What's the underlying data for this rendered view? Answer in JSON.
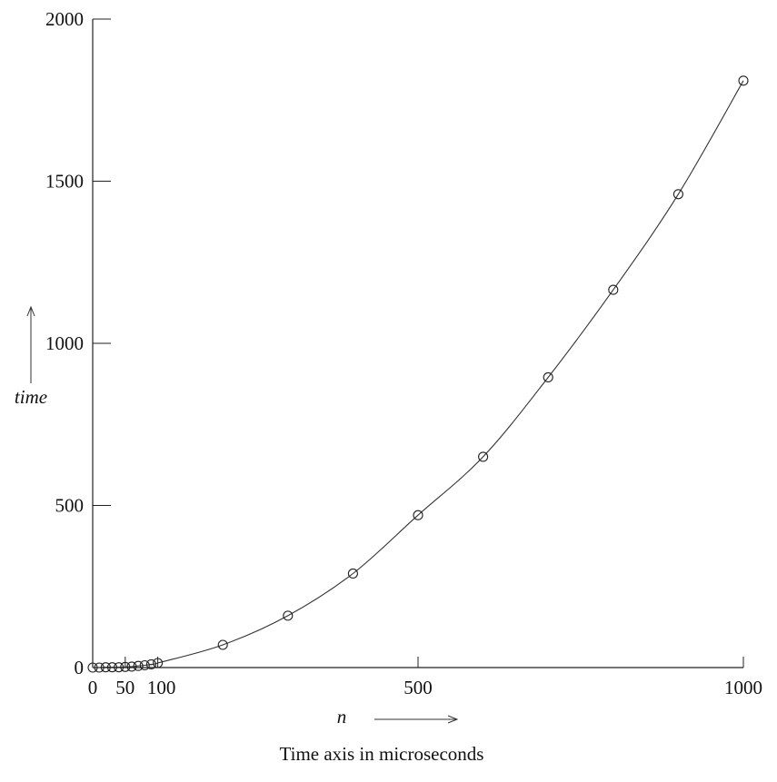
{
  "chart_data": {
    "type": "line",
    "title": "",
    "caption": "Time axis in microseconds",
    "xlabel": "n",
    "ylabel": "time",
    "xlim": [
      0,
      1000
    ],
    "ylim": [
      0,
      2000
    ],
    "x_ticks": [
      {
        "value": 0,
        "label": "0"
      },
      {
        "value": 50,
        "label": "50"
      },
      {
        "value": 100,
        "label": "100"
      },
      {
        "value": 500,
        "label": "500"
      },
      {
        "value": 1000,
        "label": "1000"
      }
    ],
    "y_ticks": [
      {
        "value": 0,
        "label": "0"
      },
      {
        "value": 500,
        "label": "500"
      },
      {
        "value": 1000,
        "label": "1000"
      },
      {
        "value": 1500,
        "label": "1500"
      },
      {
        "value": 2000,
        "label": "2000"
      }
    ],
    "grid": false,
    "series": [
      {
        "marker": "circle",
        "color": "#222222",
        "x": [
          0,
          10,
          20,
          30,
          40,
          50,
          60,
          70,
          80,
          90,
          100,
          200,
          300,
          400,
          500,
          600,
          700,
          800,
          900,
          1000
        ],
        "y": [
          0,
          0,
          1,
          1,
          1,
          2,
          3,
          5,
          7,
          10,
          14,
          70,
          160,
          290,
          470,
          650,
          895,
          1165,
          1460,
          1810
        ]
      }
    ]
  }
}
